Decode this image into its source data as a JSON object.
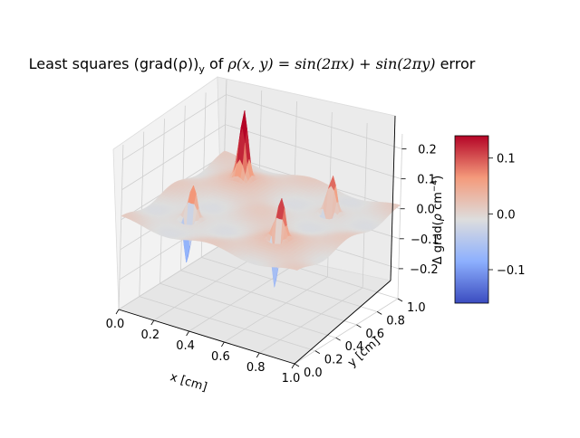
{
  "chart_data": {
    "type": "surface3d",
    "title": "Least squares (grad(ρ))y of ρ(x,y) = sin(2πx)+sin(2πy) error",
    "title_parts": {
      "prefix": "Least squares (grad(",
      "rho": "ρ",
      "close": "))",
      "sub": "y",
      "of": " of ",
      "formula": "ρ(x, y) = sin(2πx) + sin(2πy)",
      "suffix": " error"
    },
    "xlabel": "x [cm]",
    "ylabel": "y [cm]",
    "zlabel": "",
    "xlim": [
      0.0,
      1.0
    ],
    "ylim": [
      0.0,
      1.0
    ],
    "zlim": [
      -0.3,
      0.25
    ],
    "x_ticks": [
      "0.0",
      "0.2",
      "0.4",
      "0.6",
      "0.8",
      "1.0"
    ],
    "y_ticks": [
      "0.0",
      "0.2",
      "0.4",
      "0.6",
      "0.8",
      "1.0"
    ],
    "z_ticks": [
      "0.2",
      "0.1",
      "0.0",
      "−0.1",
      "−0.2"
    ],
    "z_tick_values": [
      0.2,
      0.1,
      0.0,
      -0.1,
      -0.2
    ],
    "colormap": "coolwarm",
    "colorbar": {
      "label": "Δ grad(ρ cm⁻⁴)",
      "range": [
        -0.16,
        0.14
      ],
      "ticks": [
        "0.1",
        "0.0",
        "−0.1"
      ],
      "tick_values": [
        0.1,
        0.0,
        -0.1
      ]
    },
    "features": {
      "positive_peaks": [
        {
          "x": 0.25,
          "y": 0.25,
          "value": 0.2
        },
        {
          "x": 0.25,
          "y": 0.75,
          "value": 0.24
        },
        {
          "x": 0.75,
          "y": 0.25,
          "value": 0.23
        },
        {
          "x": 0.75,
          "y": 0.75,
          "value": 0.21
        }
      ],
      "negative_troughs": [
        {
          "x": 0.25,
          "y": 0.25,
          "value": -0.26
        },
        {
          "x": 0.75,
          "y": 0.25,
          "value": -0.3
        },
        {
          "x": 0.75,
          "y": 0.75,
          "value": -0.2
        }
      ]
    },
    "grid": true
  }
}
